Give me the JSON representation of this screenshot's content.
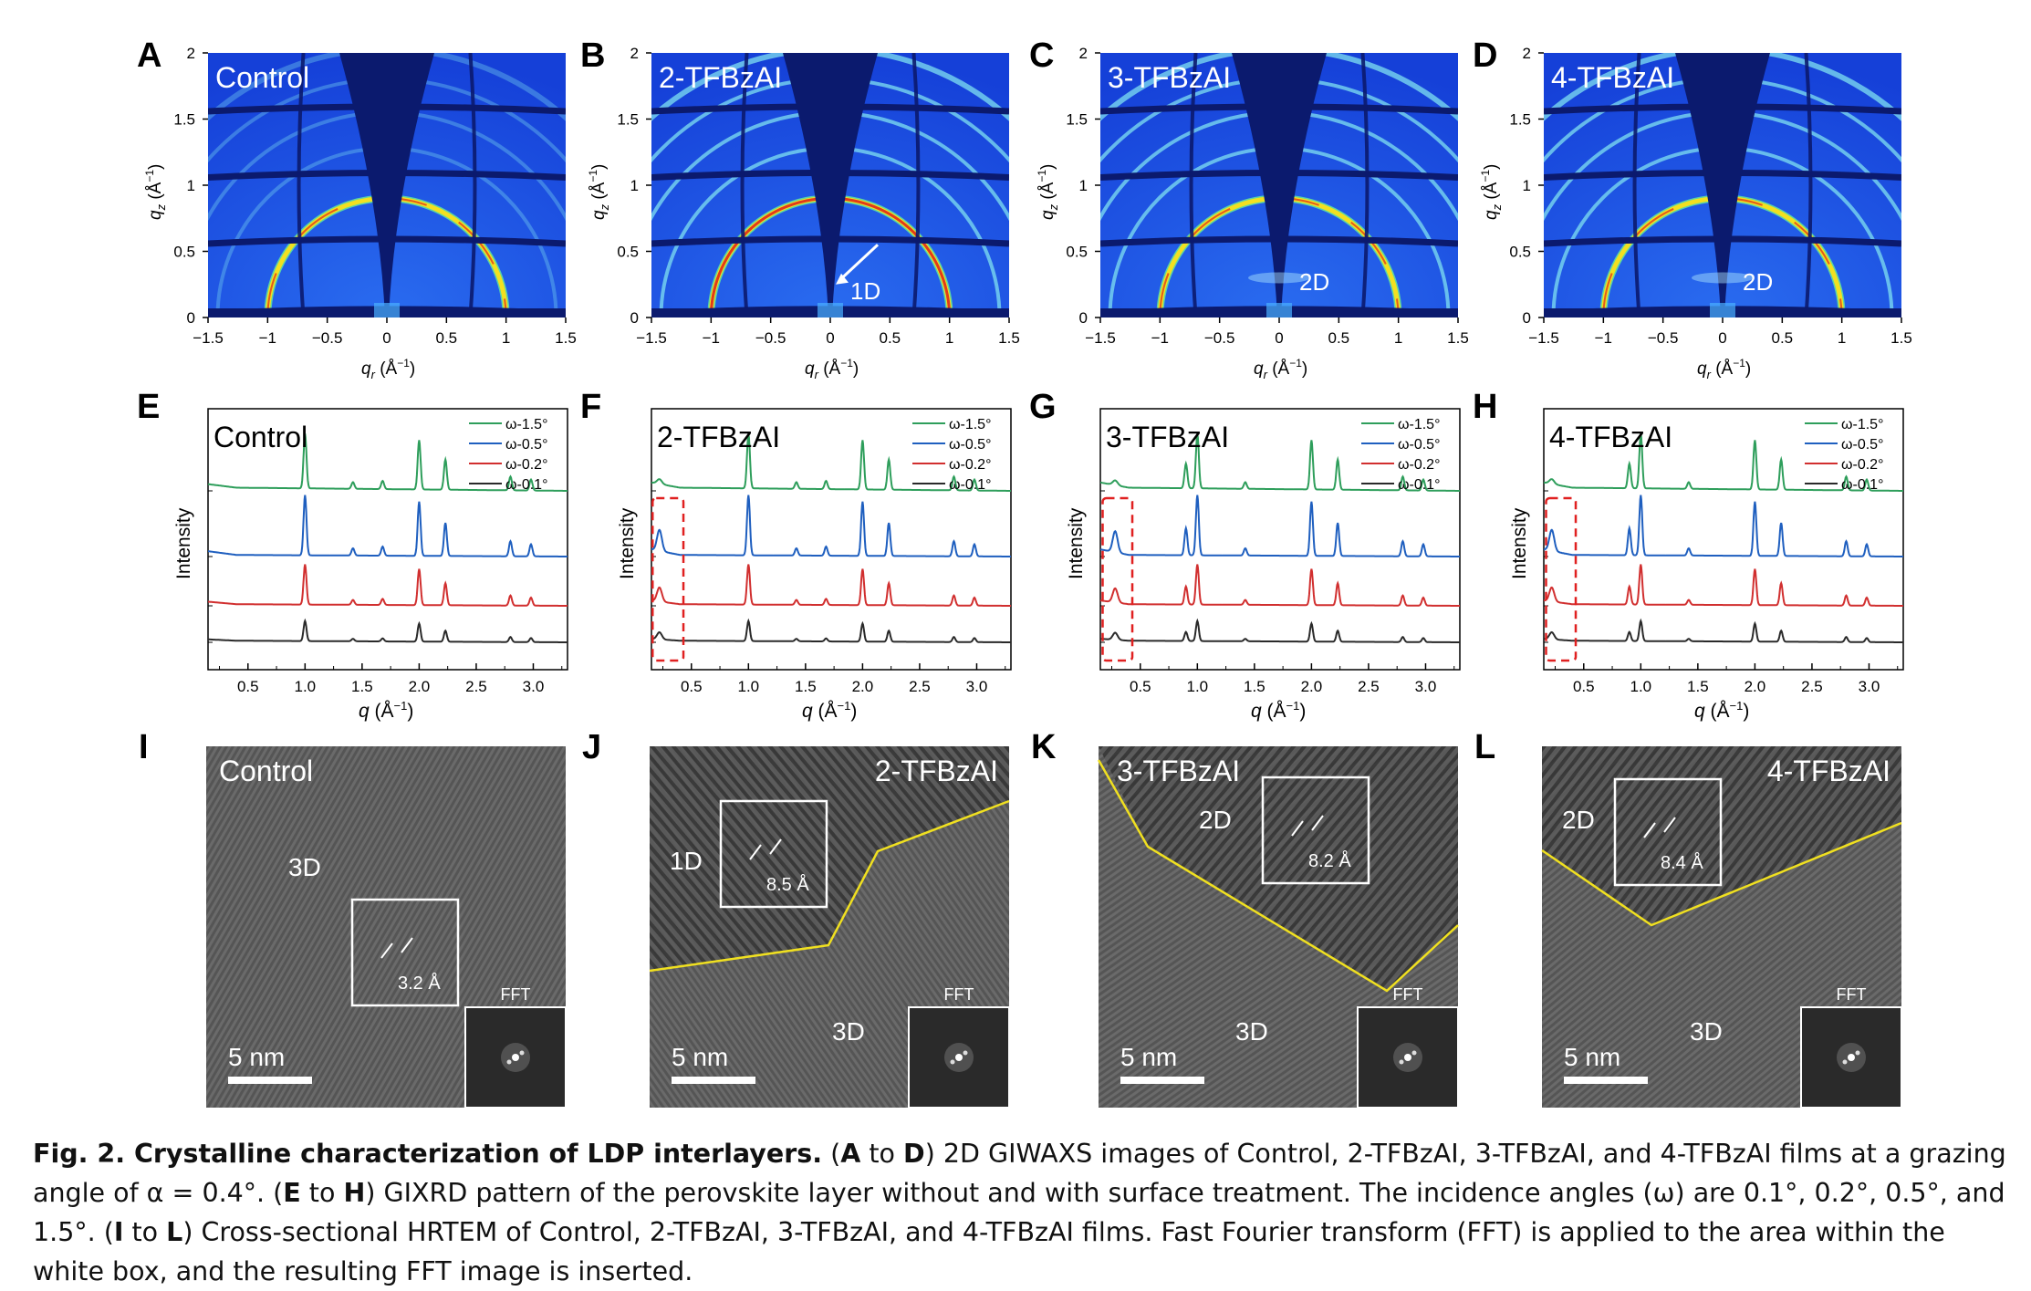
{
  "figure": {
    "panels_giwaxs": [
      {
        "letter": "A",
        "label": "Control",
        "annotation": ""
      },
      {
        "letter": "B",
        "label": "2-TFBzAI",
        "annotation": "1D"
      },
      {
        "letter": "C",
        "label": "3-TFBzAI",
        "annotation": "2D"
      },
      {
        "letter": "D",
        "label": "4-TFBzAI",
        "annotation": "2D"
      }
    ],
    "giwaxs_axes": {
      "x_ticks": [
        "−1.5",
        "−1",
        "−0.5",
        "0",
        "0.5",
        "1",
        "1.5"
      ],
      "y_ticks": [
        "0",
        "0.5",
        "1",
        "1.5",
        "2"
      ],
      "x_label": "q_r (Å⁻¹)",
      "y_label": "q_z (Å⁻¹)",
      "x_var": "q",
      "x_sub": "r",
      "y_var": "q",
      "y_sub": "z",
      "unit": "(Å",
      "unit_sup": "−1",
      "xlim": [
        -1.5,
        1.5
      ],
      "ylim": [
        0,
        2
      ]
    },
    "panels_gixrd": [
      {
        "letter": "E",
        "label": "Control"
      },
      {
        "letter": "F",
        "label": "2-TFBzAI"
      },
      {
        "letter": "G",
        "label": "3-TFBzAI"
      },
      {
        "letter": "H",
        "label": "4-TFBzAI"
      }
    ],
    "gixrd_axes": {
      "x_ticks": [
        "0.5",
        "1.0",
        "1.5",
        "2.0",
        "2.5",
        "3.0"
      ],
      "x_label": "q (Å⁻¹)",
      "y_label": "Intensity",
      "legend": [
        "ω-1.5°",
        "ω-0.5°",
        "ω-0.2°",
        "ω-0.1°"
      ],
      "series_colors": [
        "#2e9e5b",
        "#1f5fbf",
        "#d12f2f",
        "#2a2a2a"
      ]
    },
    "panels_tem": [
      {
        "letter": "I",
        "label": "Control",
        "region1": "3D",
        "region2": "",
        "spacing": "3.2 Å",
        "fft": "FFT",
        "scale": "5 nm"
      },
      {
        "letter": "J",
        "label": "2-TFBzAI",
        "region1": "1D",
        "region2": "3D",
        "spacing": "8.5 Å",
        "fft": "FFT",
        "scale": "5 nm"
      },
      {
        "letter": "K",
        "label": "3-TFBzAI",
        "region1": "2D",
        "region2": "3D",
        "spacing": "8.2 Å",
        "fft": "FFT",
        "scale": "5 nm"
      },
      {
        "letter": "L",
        "label": "4-TFBzAI",
        "region1": "2D",
        "region2": "3D",
        "spacing": "8.4 Å",
        "fft": "FFT",
        "scale": "5 nm"
      }
    ],
    "caption": {
      "title": "Fig. 2. Crystalline characterization of LDP interlayers.",
      "part1_open": " (",
      "part1_a": "A",
      "part1_to": " to ",
      "part1_d": "D",
      "part1_text": ") 2D GIWAXS images of Control, 2-TFBzAI, 3-TFBzAI, and 4-TFBzAI films at a grazing angle of α = 0.4°. (",
      "part2_e": "E",
      "part2_to": " to ",
      "part2_h": "H",
      "part2_text": ") GIXRD pattern of the perovskite layer without and with surface treatment. The incidence angles (ω) are 0.1°, 0.2°, 0.5°, and 1.5°. (",
      "part3_i": "I",
      "part3_to": " to ",
      "part3_l": "L",
      "part3_text": ") Cross-sectional HRTEM of Control, 2-TFBzAI, 3-TFBzAI, and 4-TFBzAI films. Fast Fourier transform (FFT) is applied to the area within the white box, and the resulting FFT image is inserted."
    },
    "colors": {
      "giwaxs_bg": "#1a4fe0",
      "giwaxs_dark": "#0b1a6e",
      "ring_yellow": "#f2e020",
      "ring_red": "#e03a1a",
      "annot_box": "#ffffff",
      "interface_line": "#f0e020"
    }
  },
  "chart_data": [
    {
      "type": "line",
      "panel": "E",
      "title": "Control",
      "xlabel": "q (Å⁻¹)",
      "ylabel": "Intensity",
      "xlim": [
        0.15,
        3.3
      ],
      "series": [
        {
          "name": "ω-1.5°"
        },
        {
          "name": "ω-0.5°"
        },
        {
          "name": "ω-0.2°"
        },
        {
          "name": "ω-0.1°"
        }
      ],
      "peaks_q": [
        1.0,
        1.42,
        1.68,
        2.0,
        2.23,
        2.8,
        2.98
      ]
    },
    {
      "type": "line",
      "panel": "F",
      "title": "2-TFBzAI",
      "xlabel": "q (Å⁻¹)",
      "ylabel": "Intensity",
      "xlim": [
        0.15,
        3.3
      ],
      "series": [
        {
          "name": "ω-1.5°"
        },
        {
          "name": "ω-0.5°"
        },
        {
          "name": "ω-0.2°"
        },
        {
          "name": "ω-0.1°"
        }
      ],
      "peaks_q": [
        0.22,
        1.0,
        1.42,
        1.68,
        2.0,
        2.23,
        2.8,
        2.98
      ]
    },
    {
      "type": "line",
      "panel": "G",
      "title": "3-TFBzAI",
      "xlabel": "q (Å⁻¹)",
      "ylabel": "Intensity",
      "xlim": [
        0.15,
        3.3
      ],
      "series": [
        {
          "name": "ω-1.5°"
        },
        {
          "name": "ω-0.5°"
        },
        {
          "name": "ω-0.2°"
        },
        {
          "name": "ω-0.1°"
        }
      ],
      "peaks_q": [
        0.28,
        0.9,
        1.0,
        1.42,
        2.0,
        2.23,
        2.8,
        2.98
      ]
    },
    {
      "type": "line",
      "panel": "H",
      "title": "4-TFBzAI",
      "xlabel": "q (Å⁻¹)",
      "ylabel": "Intensity",
      "xlim": [
        0.15,
        3.3
      ],
      "series": [
        {
          "name": "ω-1.5°"
        },
        {
          "name": "ω-0.5°"
        },
        {
          "name": "ω-0.2°"
        },
        {
          "name": "ω-0.1°"
        }
      ],
      "peaks_q": [
        0.22,
        0.9,
        1.0,
        1.42,
        2.0,
        2.23,
        2.8,
        2.98
      ]
    }
  ]
}
